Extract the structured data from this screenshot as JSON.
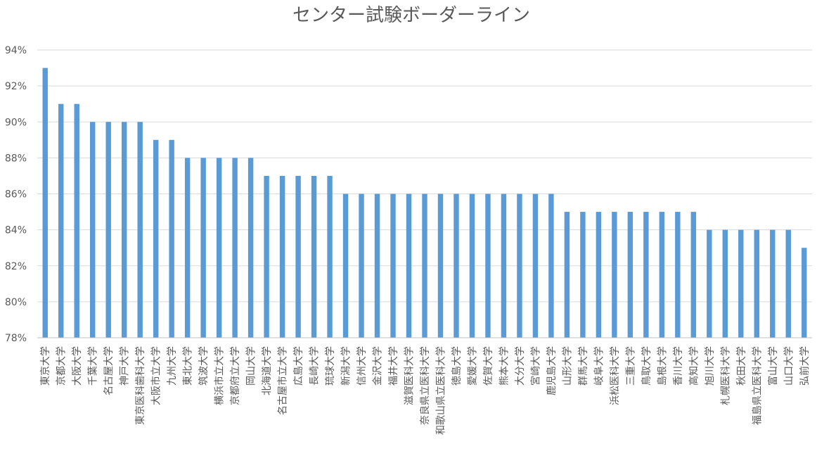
{
  "chart_data": {
    "type": "bar",
    "title": "センター試験ボーダーライン",
    "xlabel": "",
    "ylabel": "",
    "ylim": [
      78,
      94
    ],
    "yticks": [
      78,
      80,
      82,
      84,
      86,
      88,
      90,
      92,
      94
    ],
    "ytick_suffix": "%",
    "grid": true,
    "legend": "none",
    "bar_color": "#5b9bd5",
    "categories": [
      "東京大学",
      "京都大学",
      "大阪大学",
      "千葉大学",
      "名古屋大学",
      "神戸大学",
      "東京医科歯科大学",
      "大阪市立大学",
      "九州大学",
      "東北大学",
      "筑波大学",
      "横浜市立大学",
      "京都府立大学",
      "岡山大学",
      "北海道大学",
      "名古屋市立大学",
      "広島大学",
      "長崎大学",
      "琉球大学",
      "新潟大学",
      "信州大学",
      "金沢大学",
      "福井大学",
      "滋賀医科大学",
      "奈良県立医科大学",
      "和歌山県立医科大学",
      "徳島大学",
      "愛媛大学",
      "佐賀大学",
      "熊本大学",
      "大分大学",
      "宮崎大学",
      "鹿児島大学",
      "山形大学",
      "群馬大学",
      "岐阜大学",
      "浜松医科大学",
      "三重大学",
      "鳥取大学",
      "島根大学",
      "香川大学",
      "高知大学",
      "旭川大学",
      "札幌医科大学",
      "秋田大学",
      "福島県立医科大学",
      "富山大学",
      "山口大学",
      "弘前大学"
    ],
    "values": [
      93,
      91,
      91,
      90,
      90,
      90,
      90,
      89,
      89,
      88,
      88,
      88,
      88,
      88,
      87,
      87,
      87,
      87,
      87,
      86,
      86,
      86,
      86,
      86,
      86,
      86,
      86,
      86,
      86,
      86,
      86,
      86,
      86,
      85,
      85,
      85,
      85,
      85,
      85,
      85,
      85,
      85,
      84,
      84,
      84,
      84,
      84,
      84,
      83
    ]
  }
}
